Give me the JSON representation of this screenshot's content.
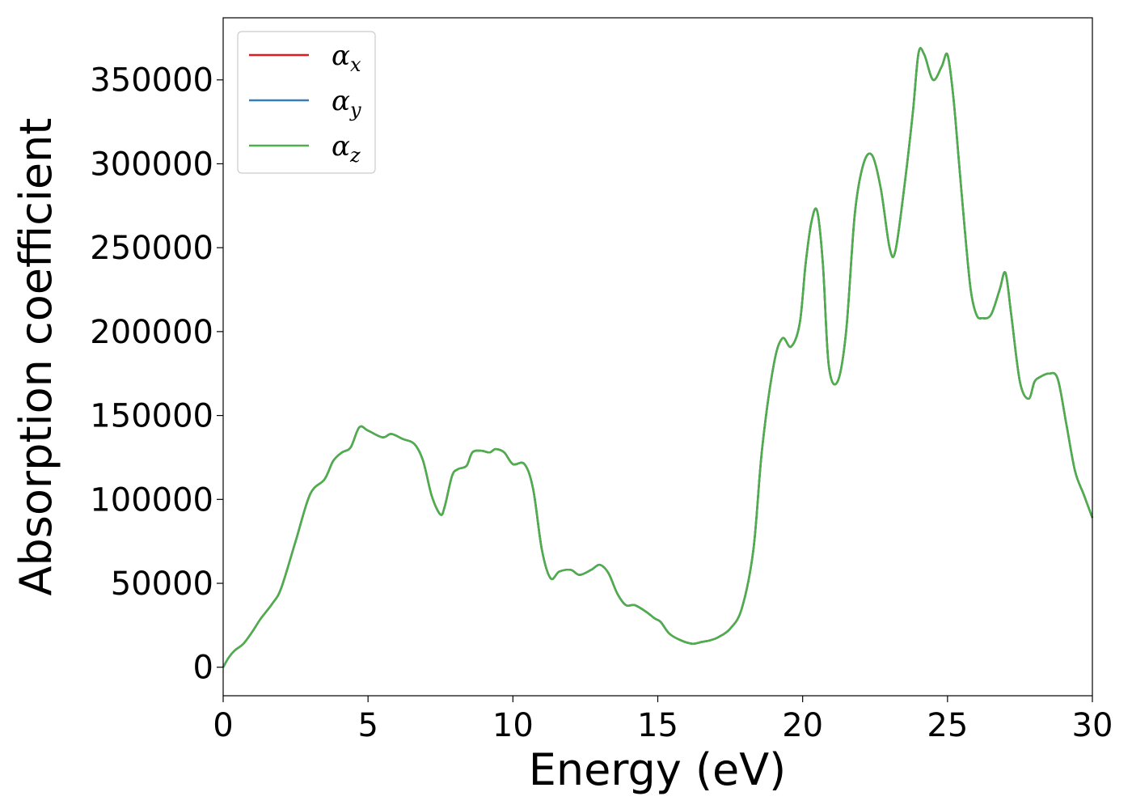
{
  "chart_data": {
    "type": "line",
    "title": "",
    "xlabel": "Energy (eV)",
    "ylabel": "Absorption coefficient",
    "xlim": [
      0,
      30
    ],
    "ylim": [
      -17000,
      387000
    ],
    "xticks": [
      0,
      5,
      10,
      15,
      20,
      25,
      30
    ],
    "xtick_labels": [
      "0",
      "5",
      "10",
      "15",
      "20",
      "25",
      "30"
    ],
    "yticks": [
      0,
      50000,
      100000,
      150000,
      200000,
      250000,
      300000,
      350000
    ],
    "ytick_labels": [
      "0",
      "50000",
      "100000",
      "150000",
      "200000",
      "250000",
      "300000",
      "350000"
    ],
    "grid": false,
    "legend": "top-left",
    "series": [
      {
        "name": "α",
        "subscript": "x",
        "color": "#e41a1c",
        "x": [
          0,
          0.2,
          0.4,
          0.7,
          1.0,
          1.3,
          1.7,
          2.0,
          2.5,
          3.0,
          3.5,
          3.8,
          4.1,
          4.4,
          4.7,
          5.0,
          5.5,
          5.8,
          6.2,
          6.6,
          6.9,
          7.2,
          7.5,
          7.65,
          7.9,
          8.1,
          8.4,
          8.6,
          8.9,
          9.2,
          9.4,
          9.7,
          10.0,
          10.4,
          10.7,
          11.0,
          11.3,
          11.6,
          12.0,
          12.3,
          12.7,
          13.0,
          13.3,
          13.6,
          13.9,
          14.2,
          14.6,
          14.9,
          15.1,
          15.4,
          15.8,
          16.2,
          16.5,
          16.8,
          17.1,
          17.5,
          17.9,
          18.3,
          18.6,
          19.0,
          19.3,
          19.6,
          19.9,
          20.1,
          20.3,
          20.5,
          20.7,
          20.9,
          21.2,
          21.5,
          21.8,
          22.1,
          22.4,
          22.7,
          23.0,
          23.2,
          23.5,
          23.8,
          24.0,
          24.2,
          24.5,
          24.8,
          25.0,
          25.2,
          25.4,
          25.6,
          25.8,
          26.0,
          26.2,
          26.5,
          26.8,
          27.0,
          27.2,
          27.5,
          27.8,
          28.0,
          28.2,
          28.5,
          28.8,
          29.1,
          29.4,
          29.7,
          30.0
        ],
        "y": [
          0,
          6000,
          10000,
          14000,
          21000,
          29000,
          38000,
          47000,
          75000,
          103000,
          112000,
          123000,
          128000,
          131000,
          143000,
          141000,
          137000,
          139000,
          136000,
          133000,
          123000,
          102000,
          91000,
          96000,
          114000,
          118000,
          120000,
          128000,
          129000,
          128000,
          130000,
          128000,
          121000,
          121000,
          106000,
          70000,
          53000,
          57000,
          58000,
          55000,
          58000,
          61000,
          56000,
          44000,
          37000,
          37000,
          33000,
          29000,
          27000,
          20000,
          16000,
          14000,
          15000,
          16000,
          18000,
          23000,
          35000,
          70000,
          130000,
          180000,
          196000,
          191000,
          205000,
          240000,
          265000,
          272000,
          240000,
          180000,
          170000,
          200000,
          270000,
          300000,
          305000,
          285000,
          250000,
          248000,
          285000,
          330000,
          366000,
          365000,
          350000,
          358000,
          365000,
          340000,
          300000,
          260000,
          225000,
          210000,
          208000,
          210000,
          225000,
          235000,
          210000,
          170000,
          160000,
          170000,
          173000,
          175000,
          172000,
          145000,
          117000,
          103000,
          89000
        ]
      },
      {
        "name": "α",
        "subscript": "y",
        "color": "#377eb8",
        "x": [
          0,
          0.2,
          0.4,
          0.7,
          1.0,
          1.3,
          1.7,
          2.0,
          2.5,
          3.0,
          3.5,
          3.8,
          4.1,
          4.4,
          4.7,
          5.0,
          5.5,
          5.8,
          6.2,
          6.6,
          6.9,
          7.2,
          7.5,
          7.65,
          7.9,
          8.1,
          8.4,
          8.6,
          8.9,
          9.2,
          9.4,
          9.7,
          10.0,
          10.4,
          10.7,
          11.0,
          11.3,
          11.6,
          12.0,
          12.3,
          12.7,
          13.0,
          13.3,
          13.6,
          13.9,
          14.2,
          14.6,
          14.9,
          15.1,
          15.4,
          15.8,
          16.2,
          16.5,
          16.8,
          17.1,
          17.5,
          17.9,
          18.3,
          18.6,
          19.0,
          19.3,
          19.6,
          19.9,
          20.1,
          20.3,
          20.5,
          20.7,
          20.9,
          21.2,
          21.5,
          21.8,
          22.1,
          22.4,
          22.7,
          23.0,
          23.2,
          23.5,
          23.8,
          24.0,
          24.2,
          24.5,
          24.8,
          25.0,
          25.2,
          25.4,
          25.6,
          25.8,
          26.0,
          26.2,
          26.5,
          26.8,
          27.0,
          27.2,
          27.5,
          27.8,
          28.0,
          28.2,
          28.5,
          28.8,
          29.1,
          29.4,
          29.7,
          30.0
        ],
        "y": [
          0,
          6000,
          10000,
          14000,
          21000,
          29000,
          38000,
          47000,
          75000,
          103000,
          112000,
          123000,
          128000,
          131000,
          143000,
          141000,
          137000,
          139000,
          136000,
          133000,
          123000,
          102000,
          91000,
          96000,
          114000,
          118000,
          120000,
          128000,
          129000,
          128000,
          130000,
          128000,
          121000,
          121000,
          106000,
          70000,
          53000,
          57000,
          58000,
          55000,
          58000,
          61000,
          56000,
          44000,
          37000,
          37000,
          33000,
          29000,
          27000,
          20000,
          16000,
          14000,
          15000,
          16000,
          18000,
          23000,
          35000,
          70000,
          130000,
          180000,
          196000,
          191000,
          205000,
          240000,
          265000,
          272000,
          240000,
          180000,
          170000,
          200000,
          270000,
          300000,
          305000,
          285000,
          250000,
          248000,
          285000,
          330000,
          366000,
          365000,
          350000,
          358000,
          365000,
          340000,
          300000,
          260000,
          225000,
          210000,
          208000,
          210000,
          225000,
          235000,
          210000,
          170000,
          160000,
          170000,
          173000,
          175000,
          172000,
          145000,
          117000,
          103000,
          89000
        ]
      },
      {
        "name": "α",
        "subscript": "z",
        "color": "#4daf4a",
        "x": [
          0,
          0.2,
          0.4,
          0.7,
          1.0,
          1.3,
          1.7,
          2.0,
          2.5,
          3.0,
          3.5,
          3.8,
          4.1,
          4.4,
          4.7,
          5.0,
          5.5,
          5.8,
          6.2,
          6.6,
          6.9,
          7.2,
          7.5,
          7.65,
          7.9,
          8.1,
          8.4,
          8.6,
          8.9,
          9.2,
          9.4,
          9.7,
          10.0,
          10.4,
          10.7,
          11.0,
          11.3,
          11.6,
          12.0,
          12.3,
          12.7,
          13.0,
          13.3,
          13.6,
          13.9,
          14.2,
          14.6,
          14.9,
          15.1,
          15.4,
          15.8,
          16.2,
          16.5,
          16.8,
          17.1,
          17.5,
          17.9,
          18.3,
          18.6,
          19.0,
          19.3,
          19.6,
          19.9,
          20.1,
          20.3,
          20.5,
          20.7,
          20.9,
          21.2,
          21.5,
          21.8,
          22.1,
          22.4,
          22.7,
          23.0,
          23.2,
          23.5,
          23.8,
          24.0,
          24.2,
          24.5,
          24.8,
          25.0,
          25.2,
          25.4,
          25.6,
          25.8,
          26.0,
          26.2,
          26.5,
          26.8,
          27.0,
          27.2,
          27.5,
          27.8,
          28.0,
          28.2,
          28.5,
          28.8,
          29.1,
          29.4,
          29.7,
          30.0
        ],
        "y": [
          0,
          6000,
          10000,
          14000,
          21000,
          29000,
          38000,
          47000,
          75000,
          103000,
          112000,
          123000,
          128000,
          131000,
          143000,
          141000,
          137000,
          139000,
          136000,
          133000,
          123000,
          102000,
          91000,
          96000,
          114000,
          118000,
          120000,
          128000,
          129000,
          128000,
          130000,
          128000,
          121000,
          121000,
          106000,
          70000,
          53000,
          57000,
          58000,
          55000,
          58000,
          61000,
          56000,
          44000,
          37000,
          37000,
          33000,
          29000,
          27000,
          20000,
          16000,
          14000,
          15000,
          16000,
          18000,
          23000,
          35000,
          70000,
          130000,
          180000,
          196000,
          191000,
          205000,
          240000,
          265000,
          272000,
          240000,
          180000,
          170000,
          200000,
          270000,
          300000,
          305000,
          285000,
          250000,
          248000,
          285000,
          330000,
          366000,
          365000,
          350000,
          358000,
          365000,
          340000,
          300000,
          260000,
          225000,
          210000,
          208000,
          210000,
          225000,
          235000,
          210000,
          170000,
          160000,
          170000,
          173000,
          175000,
          172000,
          145000,
          117000,
          103000,
          89000
        ]
      }
    ]
  }
}
